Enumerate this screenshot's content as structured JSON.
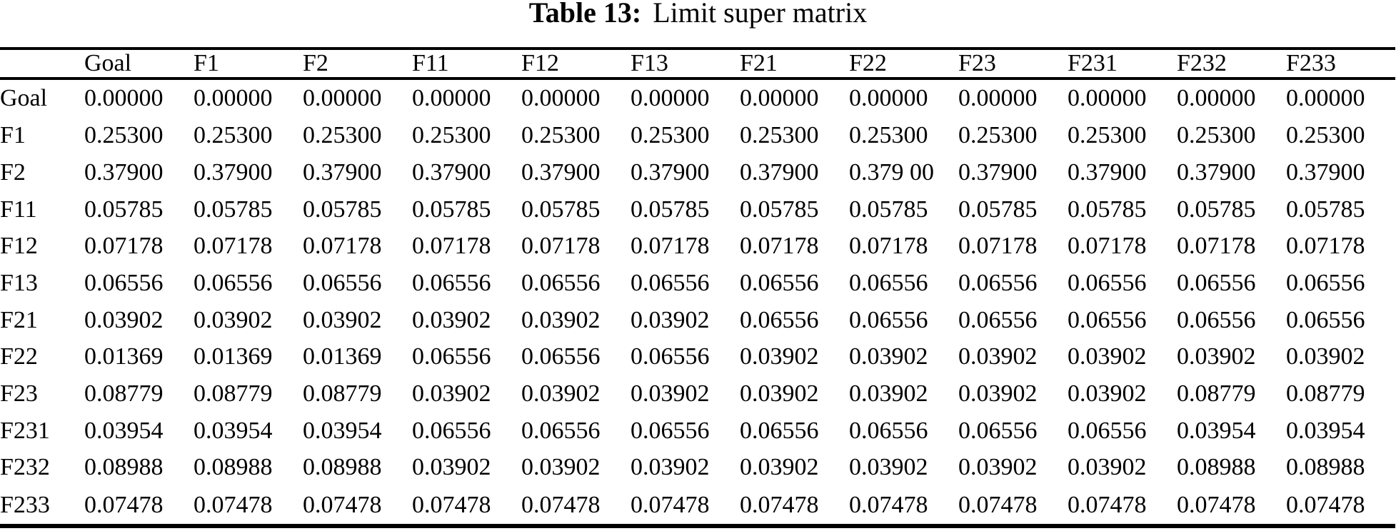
{
  "title": {
    "label": "Table 13:",
    "text": "Limit super matrix"
  },
  "colors": {
    "text": "#000000",
    "background": "#ffffff",
    "rule": "#000000"
  },
  "table": {
    "header": [
      "",
      "Goal",
      "F1",
      "F2",
      "F11",
      "F12",
      "F13",
      "F21",
      "F22",
      "F23",
      "F231",
      "F232",
      "F233"
    ],
    "rows": [
      {
        "label": "Goal",
        "values": [
          "0.00000",
          "0.00000",
          "0.00000",
          "0.00000",
          "0.00000",
          "0.00000",
          "0.00000",
          "0.00000",
          "0.00000",
          "0.00000",
          "0.00000",
          "0.00000"
        ]
      },
      {
        "label": "F1",
        "values": [
          "0.25300",
          "0.25300",
          "0.25300",
          "0.25300",
          "0.25300",
          "0.25300",
          "0.25300",
          "0.25300",
          "0.25300",
          "0.25300",
          "0.25300",
          "0.25300"
        ]
      },
      {
        "label": "F2",
        "values": [
          "0.37900",
          "0.37900",
          "0.37900",
          "0.37900",
          "0.37900",
          "0.37900",
          "0.37900",
          "0.379 00",
          "0.37900",
          "0.37900",
          "0.37900",
          "0.37900"
        ]
      },
      {
        "label": "F11",
        "values": [
          "0.05785",
          "0.05785",
          "0.05785",
          "0.05785",
          "0.05785",
          "0.05785",
          "0.05785",
          "0.05785",
          "0.05785",
          "0.05785",
          "0.05785",
          "0.05785"
        ]
      },
      {
        "label": "F12",
        "values": [
          "0.07178",
          "0.07178",
          "0.07178",
          "0.07178",
          "0.07178",
          "0.07178",
          "0.07178",
          "0.07178",
          "0.07178",
          "0.07178",
          "0.07178",
          "0.07178"
        ]
      },
      {
        "label": "F13",
        "values": [
          "0.06556",
          "0.06556",
          "0.06556",
          "0.06556",
          "0.06556",
          "0.06556",
          "0.06556",
          "0.06556",
          "0.06556",
          "0.06556",
          "0.06556",
          "0.06556"
        ]
      },
      {
        "label": "F21",
        "values": [
          "0.03902",
          "0.03902",
          "0.03902",
          "0.03902",
          "0.03902",
          "0.03902",
          "0.06556",
          "0.06556",
          "0.06556",
          "0.06556",
          "0.06556",
          "0.06556"
        ]
      },
      {
        "label": "F22",
        "values": [
          "0.01369",
          "0.01369",
          "0.01369",
          "0.06556",
          "0.06556",
          "0.06556",
          "0.03902",
          "0.03902",
          "0.03902",
          "0.03902",
          "0.03902",
          "0.03902"
        ]
      },
      {
        "label": "F23",
        "values": [
          "0.08779",
          "0.08779",
          "0.08779",
          "0.03902",
          "0.03902",
          "0.03902",
          "0.03902",
          "0.03902",
          "0.03902",
          "0.03902",
          "0.08779",
          "0.08779"
        ]
      },
      {
        "label": "F231",
        "values": [
          "0.03954",
          "0.03954",
          "0.03954",
          "0.06556",
          "0.06556",
          "0.06556",
          "0.06556",
          "0.06556",
          "0.06556",
          "0.06556",
          "0.03954",
          "0.03954"
        ]
      },
      {
        "label": "F232",
        "values": [
          "0.08988",
          "0.08988",
          "0.08988",
          "0.03902",
          "0.03902",
          "0.03902",
          "0.03902",
          "0.03902",
          "0.03902",
          "0.03902",
          "0.08988",
          "0.08988"
        ]
      },
      {
        "label": "F233",
        "values": [
          "0.07478",
          "0.07478",
          "0.07478",
          "0.07478",
          "0.07478",
          "0.07478",
          "0.07478",
          "0.07478",
          "0.07478",
          "0.07478",
          "0.07478",
          "0.07478"
        ]
      }
    ]
  }
}
